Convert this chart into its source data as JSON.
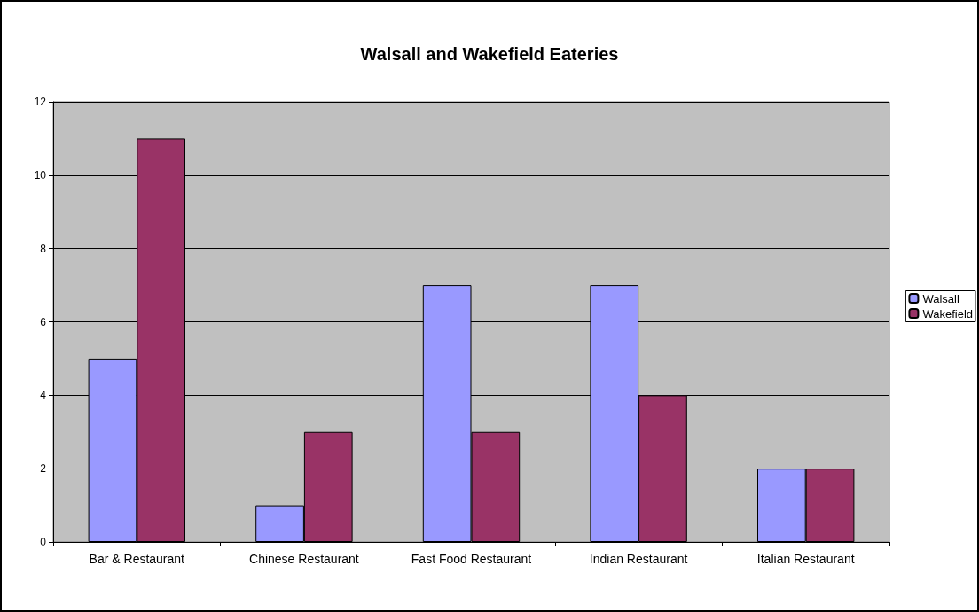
{
  "chart_data": {
    "type": "bar",
    "title": "Walsall and Wakefield Eateries",
    "categories": [
      "Bar & Restaurant",
      "Chinese Restaurant",
      "Fast Food Restaurant",
      "Indian Restaurant",
      "Italian Restaurant"
    ],
    "series": [
      {
        "name": "Walsall",
        "color": "#9999ff",
        "values": [
          5,
          1,
          7,
          7,
          2
        ]
      },
      {
        "name": "Wakefield",
        "color": "#993366",
        "values": [
          11,
          3,
          3,
          4,
          2
        ]
      }
    ],
    "ylim": [
      0,
      12
    ],
    "yticks": [
      0,
      2,
      4,
      6,
      8,
      10,
      12
    ],
    "grid": "y",
    "legend": "right"
  }
}
